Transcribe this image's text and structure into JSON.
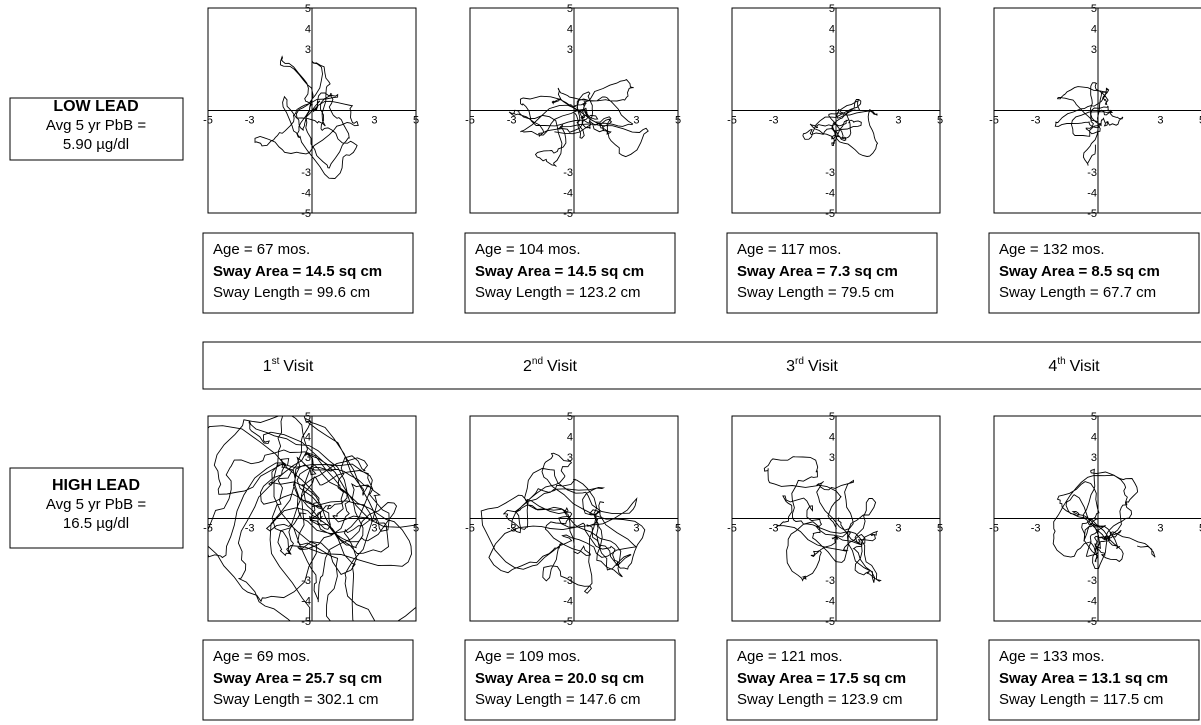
{
  "rows": [
    {
      "label": {
        "title": "LOW LEAD",
        "line2": "Avg 5 yr PbB =",
        "line3": "5.90 µg/dl"
      },
      "panels": [
        {
          "age": "Age = 67 mos.",
          "area": "Sway Area = 14.5 sq cm",
          "length": "Sway Length = 99.6 cm"
        },
        {
          "age": "Age = 104 mos.",
          "area": "Sway Area = 14.5 sq cm",
          "length": "Sway Length = 123.2 cm"
        },
        {
          "age": "Age = 117 mos.",
          "area": "Sway Area = 7.3 sq cm",
          "length": "Sway Length = 79.5 cm"
        },
        {
          "age": "Age = 132 mos.",
          "area": "Sway Area = 8.5 sq cm",
          "length": "Sway Length = 67.7 cm"
        }
      ]
    },
    {
      "label": {
        "title": "HIGH LEAD",
        "line2": "Avg 5 yr PbB =",
        "line3": "16.5 µg/dl"
      },
      "panels": [
        {
          "age": "Age = 69 mos.",
          "area": "Sway Area = 25.7 sq cm",
          "length": "Sway Length = 302.1 cm"
        },
        {
          "age": "Age = 109 mos.",
          "area": "Sway Area = 20.0 sq cm",
          "length": "Sway Length = 147.6 cm"
        },
        {
          "age": "Age = 121 mos.",
          "area": "Sway Area = 17.5 sq cm",
          "length": "Sway Length = 123.9 cm"
        },
        {
          "age": "Age = 133 mos.",
          "area": "Sway Area = 13.1 sq cm",
          "length": "Sway Length = 117.5 cm"
        }
      ]
    }
  ],
  "visits": [
    {
      "ordinal": "1",
      "suffix": "st",
      "word": "Visit"
    },
    {
      "ordinal": "2",
      "suffix": "nd",
      "word": "Visit"
    },
    {
      "ordinal": "3",
      "suffix": "rd",
      "word": "Visit"
    },
    {
      "ordinal": "4",
      "suffix": "th",
      "word": "Visit"
    }
  ],
  "axis": {
    "lim": [
      -5,
      5
    ],
    "xticks": [
      -5,
      -3,
      3,
      5
    ],
    "yticks": [
      5,
      4,
      3,
      -3,
      -4,
      -5
    ]
  }
}
